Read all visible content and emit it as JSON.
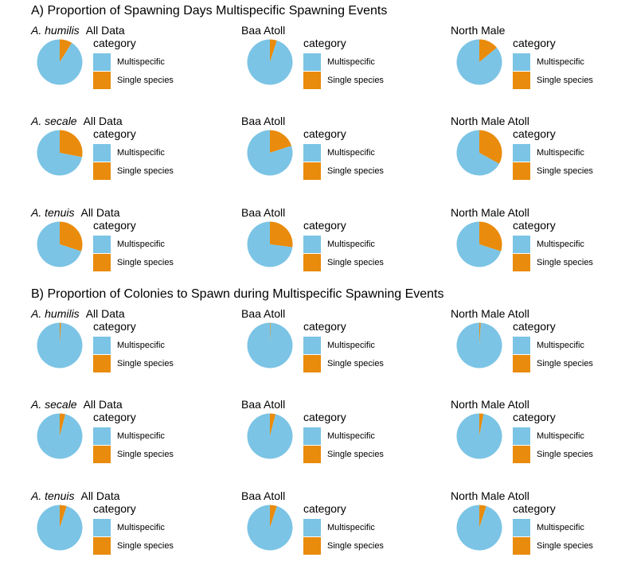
{
  "colors": {
    "multispecific": "#7bc4e5",
    "single": "#e98b0c"
  },
  "legend": {
    "title": "category",
    "items": [
      "Multispecific",
      "Single species"
    ]
  },
  "sections": [
    {
      "title": "A) Proportion of Spawning Days Multispecific Spawning Events"
    },
    {
      "title": "B) Proportion of Colonies to Spawn during Multispecific Spawning Events"
    }
  ],
  "chart_data": [
    {
      "type": "pie",
      "panel": "A1",
      "species": "A. humilis",
      "group": "All Data",
      "categories": [
        "Multispecific",
        "Single species"
      ],
      "values": [
        0.91,
        0.09
      ]
    },
    {
      "type": "pie",
      "panel": "A2",
      "species": "",
      "group": "Baa Atoll",
      "categories": [
        "Multispecific",
        "Single species"
      ],
      "values": [
        0.95,
        0.05
      ]
    },
    {
      "type": "pie",
      "panel": "A3",
      "species": "",
      "group": "North Male",
      "categories": [
        "Multispecific",
        "Single species"
      ],
      "values": [
        0.86,
        0.14
      ]
    },
    {
      "type": "pie",
      "panel": "A4",
      "species": "A. secale",
      "group": "All Data",
      "categories": [
        "Multispecific",
        "Single species"
      ],
      "values": [
        0.72,
        0.28
      ]
    },
    {
      "type": "pie",
      "panel": "A5",
      "species": "",
      "group": "Baa Atoll",
      "categories": [
        "Multispecific",
        "Single species"
      ],
      "values": [
        0.8,
        0.2
      ]
    },
    {
      "type": "pie",
      "panel": "A6",
      "species": "",
      "group": "North Male Atoll",
      "categories": [
        "Multispecific",
        "Single species"
      ],
      "values": [
        0.67,
        0.33
      ]
    },
    {
      "type": "pie",
      "panel": "A7",
      "species": "A. tenuis",
      "group": "All Data",
      "categories": [
        "Multispecific",
        "Single species"
      ],
      "values": [
        0.7,
        0.3
      ]
    },
    {
      "type": "pie",
      "panel": "A8",
      "species": "",
      "group": "Baa Atoll",
      "categories": [
        "Multispecific",
        "Single species"
      ],
      "values": [
        0.73,
        0.27
      ]
    },
    {
      "type": "pie",
      "panel": "A9",
      "species": "",
      "group": "North Male Atoll",
      "categories": [
        "Multispecific",
        "Single species"
      ],
      "values": [
        0.7,
        0.3
      ]
    },
    {
      "type": "pie",
      "panel": "B1",
      "species": "A. humilis",
      "group": "All Data",
      "categories": [
        "Multispecific",
        "Single species"
      ],
      "values": [
        0.99,
        0.01
      ]
    },
    {
      "type": "pie",
      "panel": "B2",
      "species": "",
      "group": "Baa Atoll",
      "categories": [
        "Multispecific",
        "Single species"
      ],
      "values": [
        0.995,
        0.005
      ]
    },
    {
      "type": "pie",
      "panel": "B3",
      "species": "",
      "group": "North Male Atoll",
      "categories": [
        "Multispecific",
        "Single species"
      ],
      "values": [
        0.99,
        0.01
      ]
    },
    {
      "type": "pie",
      "panel": "B4",
      "species": "A. secale",
      "group": "All Data",
      "categories": [
        "Multispecific",
        "Single species"
      ],
      "values": [
        0.96,
        0.04
      ]
    },
    {
      "type": "pie",
      "panel": "B5",
      "species": "",
      "group": "Baa Atoll",
      "categories": [
        "Multispecific",
        "Single species"
      ],
      "values": [
        0.96,
        0.04
      ]
    },
    {
      "type": "pie",
      "panel": "B6",
      "species": "",
      "group": "North Male Atoll",
      "categories": [
        "Multispecific",
        "Single species"
      ],
      "values": [
        0.97,
        0.03
      ]
    },
    {
      "type": "pie",
      "panel": "B7",
      "species": "A. tenuis",
      "group": "All Data",
      "categories": [
        "Multispecific",
        "Single species"
      ],
      "values": [
        0.95,
        0.05
      ]
    },
    {
      "type": "pie",
      "panel": "B8",
      "species": "",
      "group": "Baa Atoll",
      "categories": [
        "Multispecific",
        "Single species"
      ],
      "values": [
        0.95,
        0.05
      ]
    },
    {
      "type": "pie",
      "panel": "B9",
      "species": "",
      "group": "North Male Atoll",
      "categories": [
        "Multispecific",
        "Single species"
      ],
      "values": [
        0.95,
        0.05
      ]
    }
  ]
}
